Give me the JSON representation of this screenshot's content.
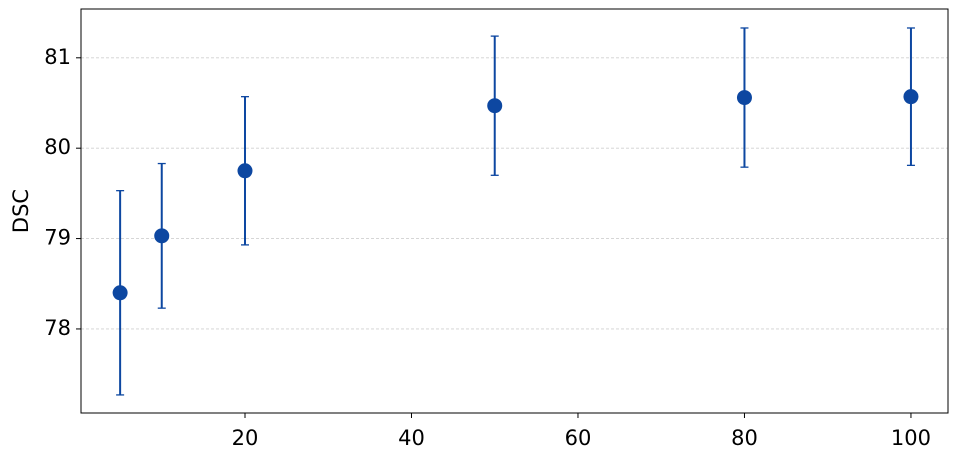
{
  "chart_data": {
    "type": "errorbar",
    "ylabel": "DSC",
    "x": [
      5,
      10,
      20,
      50,
      80,
      100
    ],
    "series": [
      {
        "color": "#0d47a1",
        "values": [
          78.4,
          79.03,
          79.75,
          80.47,
          80.56,
          80.57
        ],
        "errors": [
          1.13,
          0.8,
          0.82,
          0.77,
          0.77,
          0.76
        ]
      }
    ],
    "xlim": [
      0.3,
      104.45
    ],
    "ylim": [
      77.07,
      81.54
    ],
    "xticks": [
      20,
      40,
      60,
      80,
      100
    ],
    "yticks": [
      78,
      79,
      80,
      81
    ],
    "grid": true
  }
}
